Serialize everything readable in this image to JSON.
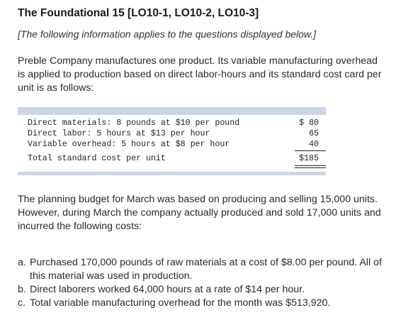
{
  "header": {
    "title": "The Foundational 15 [LO10-1, LO10-2, LO10-3]",
    "note": "[The following information applies to the questions displayed below.]"
  },
  "intro": "Preble Company manufactures one product. Its variable manufacturing overhead is applied to production based on direct labor-hours and its standard cost card per unit is as follows:",
  "cost_card": {
    "rows": [
      {
        "label": "Direct materials: 8 pounds at $10 per pound",
        "amount": "$ 80"
      },
      {
        "label": "Direct labor: 5 hours at $13 per hour",
        "amount": "65"
      },
      {
        "label": "Variable overhead: 5 hours at $8 per hour",
        "amount": "40"
      }
    ],
    "total": {
      "label": "Total standard cost per unit",
      "amount": "$185"
    }
  },
  "planning": "The planning budget for March was based on producing and selling 15,000 units. However, during March the company actually produced and sold 17,000 units and incurred the following costs:",
  "items": [
    {
      "marker": "a.",
      "text": "Purchased 170,000 pounds of raw materials at a cost of $8.00 per pound. All of this material was used in production."
    },
    {
      "marker": "b.",
      "text": "Direct laborers worked 64,000 hours at a rate of $14 per hour."
    },
    {
      "marker": "c.",
      "text": "Total variable manufacturing overhead for the month was $513,920."
    }
  ]
}
